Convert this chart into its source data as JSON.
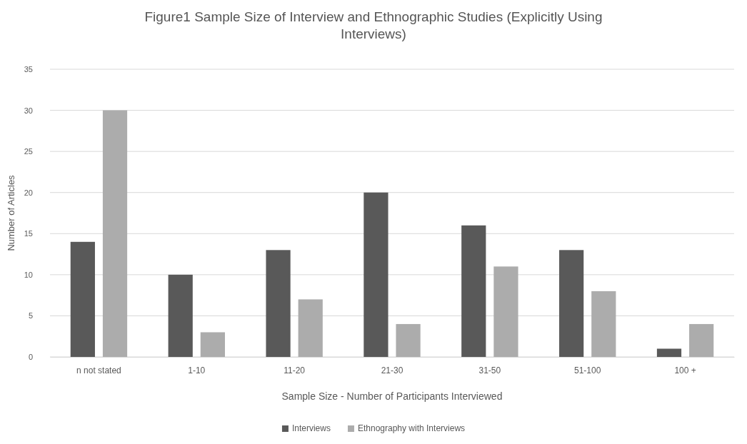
{
  "chart_data": {
    "type": "bar",
    "title": "Figure1 Sample Size of Interview and Ethnographic Studies (Explicitly Using Interviews)",
    "xlabel": "Sample Size - Number of Participants Interviewed",
    "ylabel": "Number of Articles",
    "categories": [
      "n not stated",
      "1-10",
      "11-20",
      "21-30",
      "31-50",
      "51-100",
      "100 +"
    ],
    "series": [
      {
        "name": "Interviews",
        "color": "#595959",
        "values": [
          14,
          10,
          13,
          20,
          16,
          13,
          1
        ]
      },
      {
        "name": "Ethnography with Interviews",
        "color": "#acacac",
        "values": [
          30,
          3,
          7,
          4,
          11,
          8,
          4
        ]
      }
    ],
    "ylim": [
      0,
      35
    ],
    "yticks": [
      0,
      5,
      10,
      15,
      20,
      25,
      30,
      35
    ],
    "grid": "y",
    "legend": "bottom"
  }
}
